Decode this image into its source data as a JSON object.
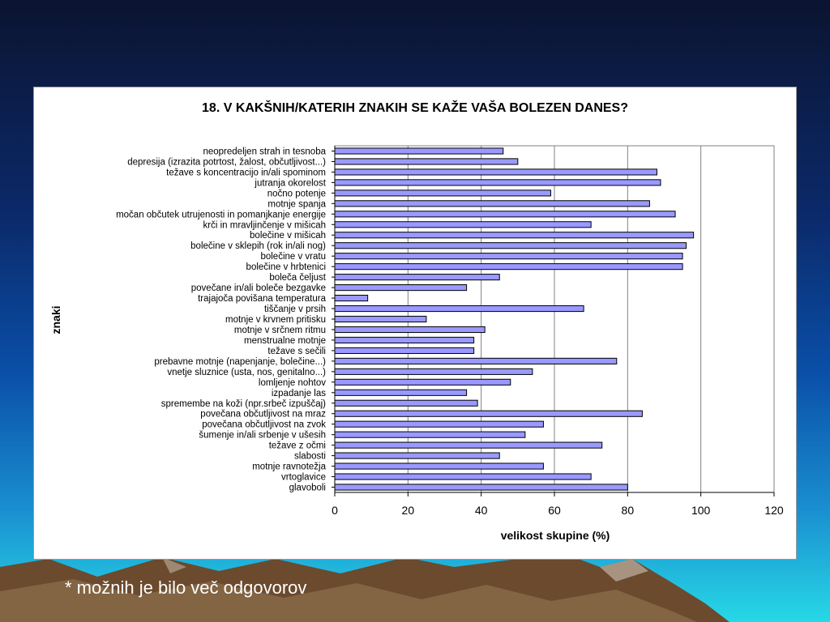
{
  "footnote": "* možnih je bilo več odgovorov",
  "colors": {
    "bar_fill": "#9999ff",
    "bar_stroke": "#000000",
    "grid": "#808080"
  },
  "chart_data": {
    "type": "bar",
    "orientation": "horizontal",
    "title": "18. V KAKŠNIH/KATERIH ZNAKIH SE KAŽE VAŠA BOLEZEN DANES?",
    "xlabel": "velikost skupine (%)",
    "ylabel": "znaki",
    "xlim": [
      0,
      120
    ],
    "xticks": [
      0,
      20,
      40,
      60,
      80,
      100,
      120
    ],
    "grid": "vertical",
    "legend": "none",
    "categories": [
      "neopredeljen strah in tesnoba",
      "depresija (izrazita potrtost, žalost, občutljivost...)",
      "težave s koncentracijo in/ali spominom",
      "jutranja okorelost",
      "nočno potenje",
      "motnje spanja",
      "močan občutek utrujenosti in pomanjkanje energije",
      "krči in mravljinčenje v mišicah",
      "bolečine v mišicah",
      "bolečine v sklepih (rok in/ali nog)",
      "bolečine v vratu",
      "bolečine v hrbtenici",
      "boleča čeljust",
      "povečane in/ali boleče bezgavke",
      "trajajoča povišana temperatura",
      "tiščanje v prsih",
      "motnje v krvnem pritisku",
      "motnje v srčnem ritmu",
      "menstrualne motnje",
      "težave s sečili",
      "prebavne motnje (napenjanje, bolečine...)",
      "vnetje sluznice (usta, nos, genitalno...)",
      "lomljenje nohtov",
      "izpadanje las",
      "spremembe na koži (npr.srbeč izpuščaj)",
      "povečana občutljivost na mraz",
      "povečana občutljivost na zvok",
      "šumenje in/ali srbenje v ušesih",
      "težave z očmi",
      "slabosti",
      "motnje ravnotežja",
      "vrtoglavice",
      "glavoboli"
    ],
    "values": [
      46,
      50,
      88,
      89,
      59,
      86,
      93,
      70,
      98,
      96,
      95,
      95,
      45,
      36,
      9,
      68,
      25,
      41,
      38,
      38,
      77,
      54,
      48,
      36,
      39,
      84,
      57,
      52,
      73,
      45,
      57,
      70,
      80
    ]
  }
}
